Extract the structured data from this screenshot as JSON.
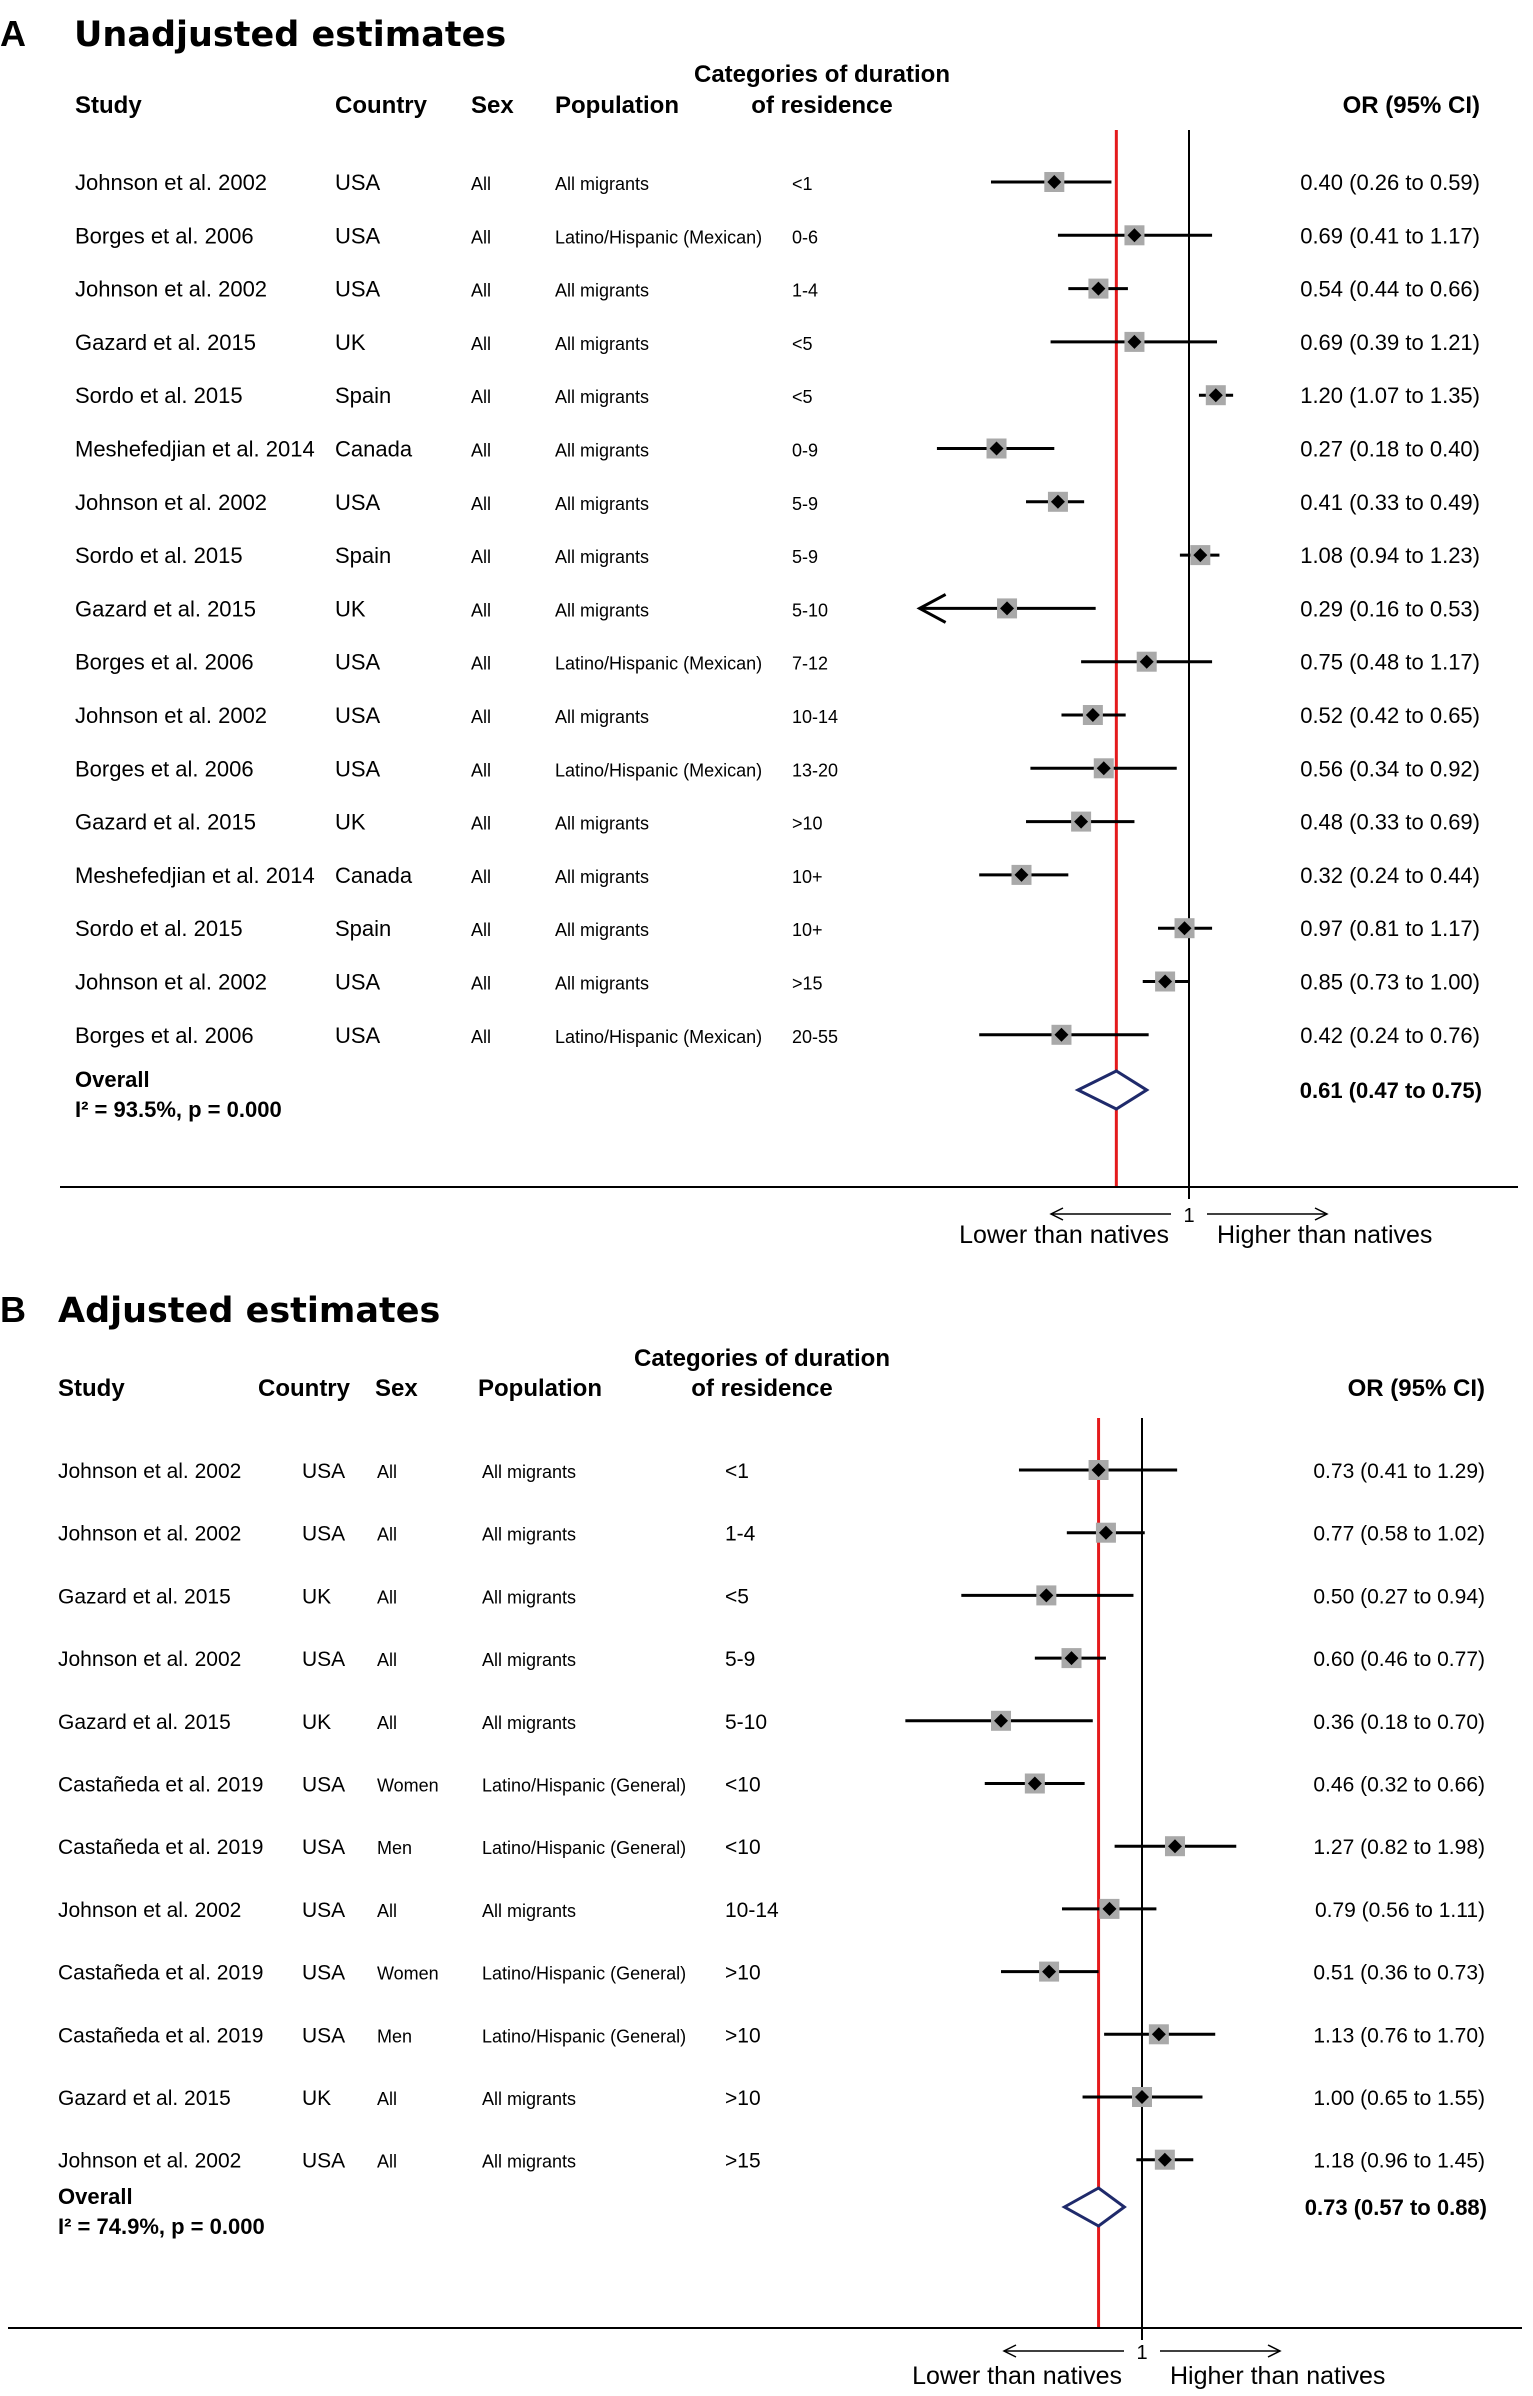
{
  "chart_data": [
    {
      "type": "forest",
      "panel_letter": "A",
      "title": "Unadjusted estimates",
      "columns": {
        "study": "Study",
        "country": "Country",
        "sex": "Sex",
        "population": "Population",
        "duration_line1": "Categories of duration",
        "duration_line2": "of residence",
        "or": "OR (95% CI)"
      },
      "rows": [
        {
          "study": "Johnson et al. 2002",
          "country": "USA",
          "sex": "All",
          "population": "All migrants",
          "duration": "<1",
          "or": 0.4,
          "lo": 0.26,
          "hi": 0.59,
          "ci_text": "0.40 (0.26 to 0.59)"
        },
        {
          "study": "Borges et al. 2006",
          "country": "USA",
          "sex": "All",
          "population": "Latino/Hispanic  (Mexican)",
          "duration": "0-6",
          "or": 0.69,
          "lo": 0.41,
          "hi": 1.17,
          "ci_text": "0.69 (0.41 to 1.17)"
        },
        {
          "study": "Johnson et al. 2002",
          "country": "USA",
          "sex": "All",
          "population": "All migrants",
          "duration": "1-4",
          "or": 0.54,
          "lo": 0.44,
          "hi": 0.66,
          "ci_text": "0.54 (0.44 to 0.66)"
        },
        {
          "study": "Gazard et al. 2015",
          "country": "UK",
          "sex": "All",
          "population": "All migrants",
          "duration": "<5",
          "or": 0.69,
          "lo": 0.39,
          "hi": 1.21,
          "ci_text": "0.69 (0.39 to 1.21)"
        },
        {
          "study": "Sordo et al. 2015",
          "country": "Spain",
          "sex": "All",
          "population": "All migrants",
          "duration": "<5",
          "or": 1.2,
          "lo": 1.07,
          "hi": 1.35,
          "ci_text": "1.20 (1.07 to 1.35)"
        },
        {
          "study": "Meshefedjian et al. 2014",
          "country": "Canada",
          "sex": "All",
          "population": "All migrants",
          "duration": "0-9",
          "or": 0.27,
          "lo": 0.18,
          "hi": 0.4,
          "ci_text": "0.27 (0.18 to 0.40)"
        },
        {
          "study": "Johnson et al. 2002",
          "country": "USA",
          "sex": "All",
          "population": "All migrants",
          "duration": "5-9",
          "or": 0.41,
          "lo": 0.33,
          "hi": 0.49,
          "ci_text": "0.41 (0.33 to 0.49)"
        },
        {
          "study": "Sordo et al. 2015",
          "country": "Spain",
          "sex": "All",
          "population": "All migrants",
          "duration": "5-9",
          "or": 1.08,
          "lo": 0.94,
          "hi": 1.23,
          "ci_text": "1.08 (0.94 to 1.23)"
        },
        {
          "study": "Gazard et al. 2015",
          "country": "UK",
          "sex": "All",
          "population": "All migrants",
          "duration": "5-10",
          "or": 0.29,
          "lo": 0.16,
          "hi": 0.53,
          "ci_text": "0.29 (0.16 to 0.53)",
          "arrow_left": true
        },
        {
          "study": "Borges et al. 2006",
          "country": "USA",
          "sex": "All",
          "population": "Latino/Hispanic  (Mexican)",
          "duration": "7-12",
          "or": 0.75,
          "lo": 0.48,
          "hi": 1.17,
          "ci_text": "0.75 (0.48 to 1.17)"
        },
        {
          "study": "Johnson et al. 2002",
          "country": "USA",
          "sex": "All",
          "population": "All migrants",
          "duration": "10-14",
          "or": 0.52,
          "lo": 0.42,
          "hi": 0.65,
          "ci_text": "0.52 (0.42 to 0.65)"
        },
        {
          "study": "Borges et al. 2006",
          "country": "USA",
          "sex": "All",
          "population": "Latino/Hispanic  (Mexican)",
          "duration": "13-20",
          "or": 0.56,
          "lo": 0.34,
          "hi": 0.92,
          "ci_text": "0.56 (0.34 to 0.92)"
        },
        {
          "study": "Gazard et al. 2015",
          "country": "UK",
          "sex": "All",
          "population": "All migrants",
          "duration": ">10",
          "or": 0.48,
          "lo": 0.33,
          "hi": 0.69,
          "ci_text": "0.48 (0.33 to 0.69)"
        },
        {
          "study": "Meshefedjian et al. 2014",
          "country": "Canada",
          "sex": "All",
          "population": "All migrants",
          "duration": "10+",
          "or": 0.32,
          "lo": 0.24,
          "hi": 0.44,
          "ci_text": "0.32 (0.24 to 0.44)"
        },
        {
          "study": "Sordo et al. 2015",
          "country": "Spain",
          "sex": "All",
          "population": "All migrants",
          "duration": "10+",
          "or": 0.97,
          "lo": 0.81,
          "hi": 1.17,
          "ci_text": "0.97 (0.81 to 1.17)"
        },
        {
          "study": "Johnson et al. 2002",
          "country": "USA",
          "sex": "All",
          "population": "All migrants",
          "duration": ">15",
          "or": 0.85,
          "lo": 0.73,
          "hi": 1.0,
          "ci_text": "0.85 (0.73 to 1.00)"
        },
        {
          "study": "Borges et al. 2006",
          "country": "USA",
          "sex": "All",
          "population": "Latino/Hispanic  (Mexican)",
          "duration": "20-55",
          "or": 0.42,
          "lo": 0.24,
          "hi": 0.76,
          "ci_text": "0.42 (0.24 to 0.76)"
        }
      ],
      "overall": {
        "label": "Overall",
        "heterogeneity": "I² = 93.5%, p = 0.000",
        "or": 0.61,
        "lo": 0.47,
        "hi": 0.75,
        "ci_text": "0.61 (0.47 to 0.75)"
      },
      "reference_value": 1,
      "reference_label": "1",
      "lower_label": "Lower than natives",
      "higher_label": "Higher than natives",
      "pooled_line_color": "#e41a1c",
      "diamond_color": "#1f2a6b"
    },
    {
      "type": "forest",
      "panel_letter": "B",
      "title": "Adjusted estimates",
      "columns": {
        "study": "Study",
        "country": "Country",
        "sex": "Sex",
        "population": "Population",
        "duration_line1": "Categories of duration",
        "duration_line2": "of residence",
        "or": "OR (95% CI)"
      },
      "rows": [
        {
          "study": "Johnson et al. 2002",
          "country": "USA",
          "sex": "All",
          "population": "All migrants",
          "duration": "<1",
          "or": 0.73,
          "lo": 0.41,
          "hi": 1.29,
          "ci_text": "0.73 (0.41 to 1.29)"
        },
        {
          "study": "Johnson et al. 2002",
          "country": "USA",
          "sex": "All",
          "population": "All migrants",
          "duration": "1-4",
          "or": 0.77,
          "lo": 0.58,
          "hi": 1.02,
          "ci_text": "0.77 (0.58 to 1.02)"
        },
        {
          "study": "Gazard et al. 2015",
          "country": "UK",
          "sex": "All",
          "population": "All migrants",
          "duration": "<5",
          "or": 0.5,
          "lo": 0.27,
          "hi": 0.94,
          "ci_text": "0.50 (0.27 to 0.94)"
        },
        {
          "study": "Johnson et al. 2002",
          "country": "USA",
          "sex": "All",
          "population": "All migrants",
          "duration": "5-9",
          "or": 0.6,
          "lo": 0.46,
          "hi": 0.77,
          "ci_text": "0.60 (0.46 to 0.77)"
        },
        {
          "study": "Gazard et al. 2015",
          "country": "UK",
          "sex": "All",
          "population": "All migrants",
          "duration": "5-10",
          "or": 0.36,
          "lo": 0.18,
          "hi": 0.7,
          "ci_text": "0.36 (0.18 to 0.70)"
        },
        {
          "study": "Castañeda et al. 2019",
          "country": "USA",
          "sex": "Women",
          "population": "Latino/Hispanic  (General)",
          "duration": "<10",
          "or": 0.46,
          "lo": 0.32,
          "hi": 0.66,
          "ci_text": "0.46 (0.32 to 0.66)"
        },
        {
          "study": "Castañeda et al. 2019",
          "country": "USA",
          "sex": "Men",
          "population": "Latino/Hispanic  (General)",
          "duration": "<10",
          "or": 1.27,
          "lo": 0.82,
          "hi": 1.98,
          "ci_text": "1.27 (0.82 to 1.98)"
        },
        {
          "study": "Johnson et al. 2002",
          "country": "USA",
          "sex": "All",
          "population": "All migrants",
          "duration": "10-14",
          "or": 0.79,
          "lo": 0.56,
          "hi": 1.11,
          "ci_text": "0.79 (0.56 to 1.11)"
        },
        {
          "study": "Castañeda et al. 2019",
          "country": "USA",
          "sex": "Women",
          "population": "Latino/Hispanic  (General)",
          "duration": ">10",
          "or": 0.51,
          "lo": 0.36,
          "hi": 0.73,
          "ci_text": "0.51 (0.36 to 0.73)"
        },
        {
          "study": "Castañeda et al. 2019",
          "country": "USA",
          "sex": "Men",
          "population": "Latino/Hispanic  (General)",
          "duration": ">10",
          "or": 1.13,
          "lo": 0.76,
          "hi": 1.7,
          "ci_text": "1.13 (0.76 to 1.70)"
        },
        {
          "study": "Gazard et al. 2015",
          "country": "UK",
          "sex": "All",
          "population": "All migrants",
          "duration": ">10",
          "or": 1.0,
          "lo": 0.65,
          "hi": 1.55,
          "ci_text": "1.00 (0.65 to 1.55)"
        },
        {
          "study": "Johnson et al. 2002",
          "country": "USA",
          "sex": "All",
          "population": "All migrants",
          "duration": ">15",
          "or": 1.18,
          "lo": 0.96,
          "hi": 1.45,
          "ci_text": "1.18 (0.96 to 1.45)"
        }
      ],
      "overall": {
        "label": "Overall",
        "heterogeneity": "I² = 74.9%, p = 0.000",
        "or": 0.73,
        "lo": 0.57,
        "hi": 0.88,
        "ci_text": "0.73 (0.57 to 0.88)"
      },
      "reference_value": 1,
      "reference_label": "1",
      "lower_label": "Lower than natives",
      "higher_label": "Higher than natives",
      "pooled_line_color": "#e41a1c",
      "diamond_color": "#1f2a6b"
    }
  ]
}
